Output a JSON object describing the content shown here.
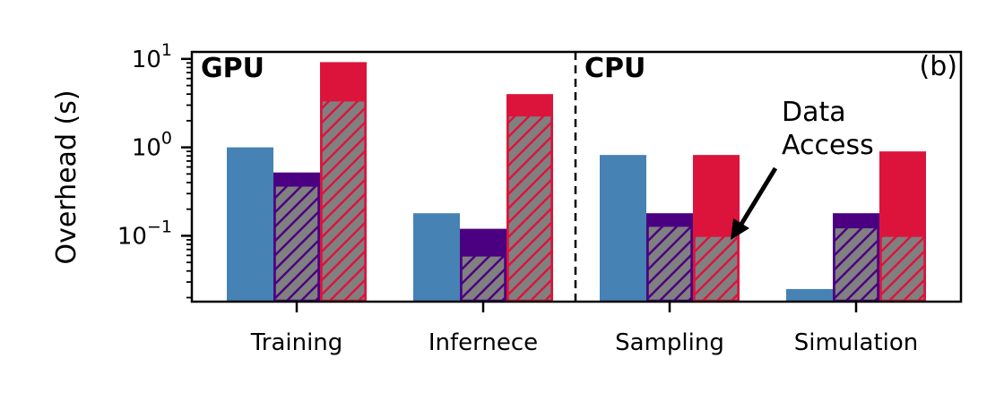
{
  "chart_data": {
    "type": "bar",
    "yscale": "log",
    "ylim": [
      0.018,
      12
    ],
    "ylabel": "Overhead (s)",
    "categories": [
      "Training",
      "Infernece",
      "Sampling",
      "Simulation"
    ],
    "yticks": [
      {
        "base": "10",
        "exp": "1",
        "value": 10
      },
      {
        "base": "10",
        "exp": "0",
        "value": 1
      },
      {
        "base": "10",
        "exp": "−1",
        "value": 0.1
      }
    ],
    "colors": {
      "series1": "#4682b4",
      "series2": "#4b0082",
      "series3": "#dc143c",
      "hatch_fill": "#808080"
    },
    "series": [
      {
        "values": [
          1.0,
          0.18,
          0.82,
          0.025
        ],
        "data_access": [
          null,
          null,
          null,
          null
        ]
      },
      {
        "values": [
          0.52,
          0.12,
          0.18,
          0.18
        ],
        "data_access": [
          0.37,
          0.06,
          0.13,
          0.125
        ]
      },
      {
        "values": [
          9.2,
          4.0,
          0.82,
          0.9
        ],
        "data_access": [
          3.4,
          2.3,
          0.1,
          0.1
        ]
      }
    ],
    "regions": [
      {
        "label": "GPU",
        "categories": [
          "Training",
          "Infernece"
        ]
      },
      {
        "label": "CPU",
        "categories": [
          "Sampling",
          "Simulation"
        ]
      }
    ],
    "panel_label": "(b)",
    "annotation": {
      "lines": [
        "Data",
        "Access"
      ],
      "points_to": "Sampling series 3 hatched segment"
    }
  }
}
